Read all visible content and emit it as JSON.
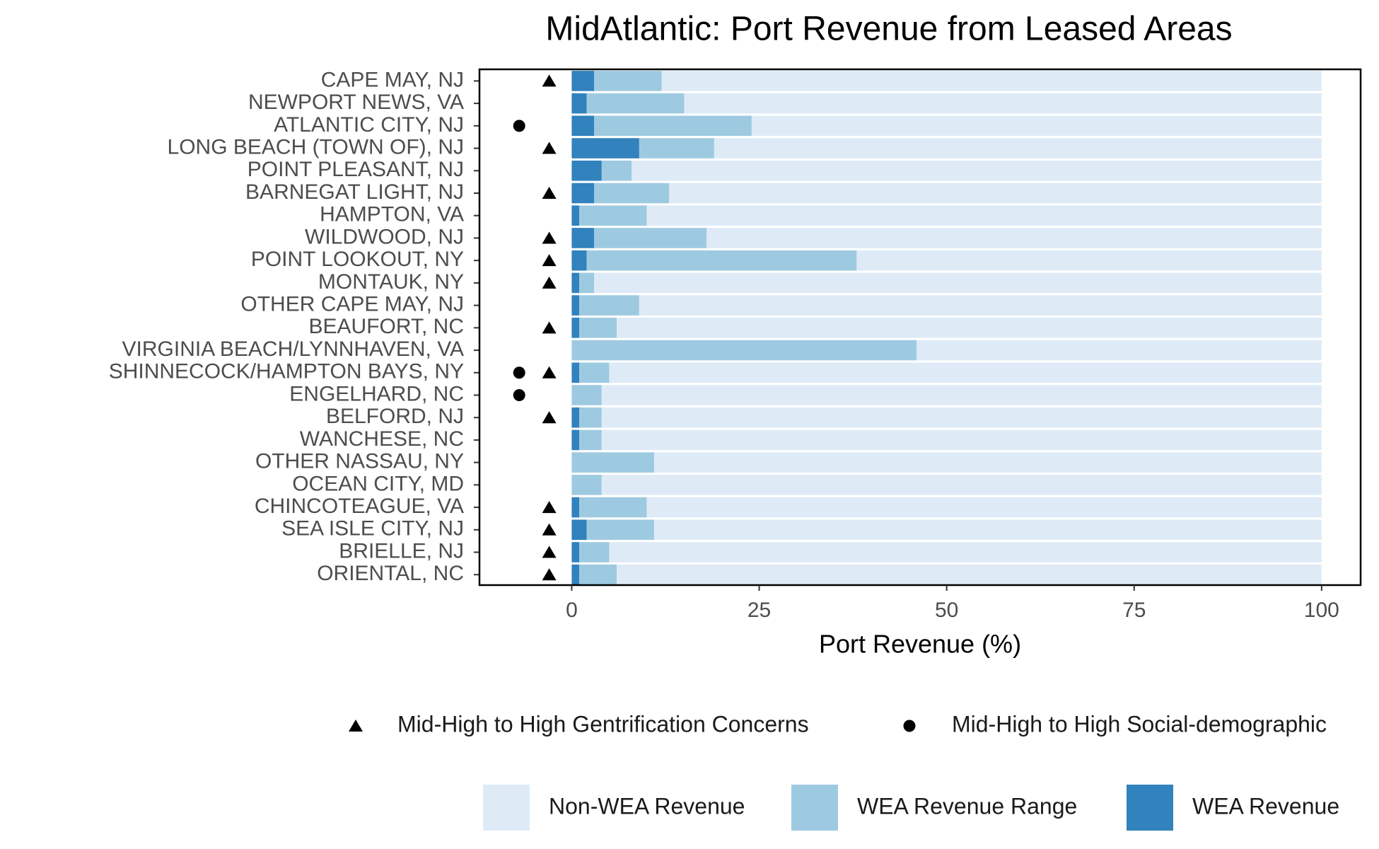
{
  "chart_data": {
    "type": "stacked-bar-horizontal",
    "title": "MidAtlantic: Port Revenue from Leased Areas",
    "x_label": "Port Revenue (%)",
    "categories": [
      "CAPE MAY, NJ",
      "NEWPORT NEWS, VA",
      "ATLANTIC CITY, NJ",
      "LONG BEACH (TOWN OF), NJ",
      "POINT PLEASANT, NJ",
      "BARNEGAT LIGHT, NJ",
      "HAMPTON, VA",
      "WILDWOOD, NJ",
      "POINT LOOKOUT, NY",
      "MONTAUK, NY",
      "OTHER CAPE MAY, NJ",
      "BEAUFORT, NC",
      "VIRGINIA BEACH/LYNNHAVEN, VA",
      "SHINNECOCK/HAMPTON BAYS, NY",
      "ENGELHARD, NC",
      "BELFORD, NJ",
      "WANCHESE, NC",
      "OTHER NASSAU, NY",
      "OCEAN CITY, MD",
      "CHINCOTEAGUE, VA",
      "SEA ISLE CITY, NJ",
      "BRIELLE, NJ",
      "ORIENTAL, NC"
    ],
    "series": [
      {
        "name": "WEA Revenue",
        "color": "#3182bd",
        "values": [
          3,
          2,
          3,
          9,
          4,
          3,
          1,
          3,
          2,
          1,
          1,
          1,
          0,
          1,
          0,
          1,
          1,
          0,
          0,
          1,
          2,
          1,
          1
        ]
      },
      {
        "name": "WEA Revenue Range",
        "color": "#9ecae1",
        "values": [
          9,
          13,
          21,
          10,
          4,
          10,
          9,
          15,
          36,
          2,
          8,
          5,
          46,
          4,
          4,
          3,
          3,
          11,
          4,
          9,
          9,
          4,
          5
        ]
      },
      {
        "name": "Non-WEA Revenue",
        "color": "#deebf7",
        "values": [
          88,
          85,
          76,
          81,
          92,
          87,
          90,
          82,
          62,
          97,
          91,
          94,
          54,
          95,
          96,
          96,
          96,
          89,
          96,
          90,
          89,
          95,
          94
        ]
      }
    ],
    "markers": [
      {
        "name": "Mid-High to High Gentrification Concerns",
        "shape": "triangle",
        "values": [
          -3,
          null,
          null,
          -3,
          null,
          -3,
          null,
          -3,
          -3,
          -3,
          null,
          -3,
          null,
          -3,
          null,
          -3,
          null,
          null,
          null,
          -3,
          -3,
          -3,
          -3
        ]
      },
      {
        "name": "Mid-High to High Social-demographic",
        "shape": "circle",
        "values": [
          null,
          null,
          -7,
          null,
          null,
          null,
          null,
          null,
          null,
          null,
          null,
          null,
          null,
          -7,
          -7,
          null,
          null,
          null,
          null,
          null,
          null,
          null,
          null
        ]
      }
    ],
    "xlim": [
      -12.3,
      105.2
    ],
    "xticks": [
      0,
      25,
      50,
      75,
      100
    ]
  }
}
